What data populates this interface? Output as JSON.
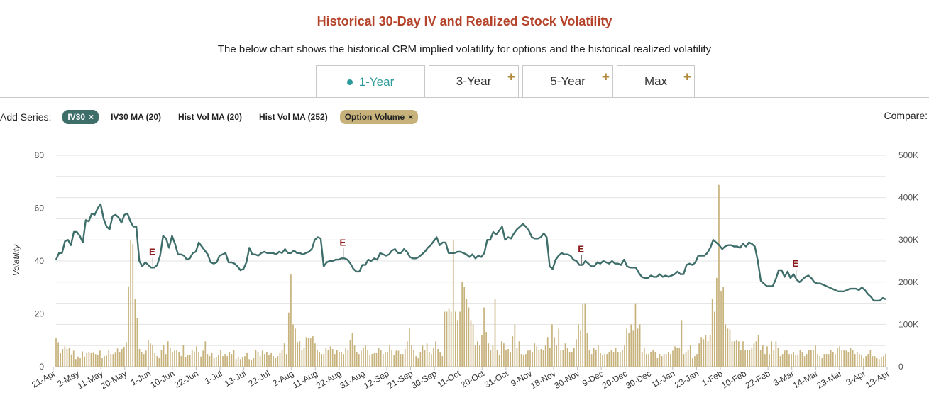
{
  "title": "Historical 30-Day IV and Realized Stock Volatility",
  "subtitle": "The below chart shows the historical CRM implied volatility for options and the historical realized volatility",
  "tabs": [
    {
      "label": "1-Year",
      "active": true
    },
    {
      "label": "3-Year",
      "locked": true
    },
    {
      "label": "5-Year",
      "locked": true
    },
    {
      "label": "Max",
      "locked": true
    }
  ],
  "add_series": {
    "label": "Add Series:",
    "items": [
      {
        "label": "IV30",
        "active": true,
        "color": "#3d6e6a"
      },
      {
        "label": "IV30 MA (20)",
        "active": false
      },
      {
        "label": "Hist Vol MA (20)",
        "active": false
      },
      {
        "label": "Hist Vol MA (252)",
        "active": false
      },
      {
        "label": "Option Volume",
        "active": true,
        "color": "#c7b27c"
      }
    ],
    "remove_glyph": "×"
  },
  "compare_label": "Compare:",
  "chart_data": {
    "type": "line",
    "ylabel": "Volatility",
    "ylim": [
      0,
      80
    ],
    "y_ticks": [
      "0",
      "20",
      "40",
      "60",
      "80"
    ],
    "y2lim": [
      0,
      500000
    ],
    "y2_ticks": [
      "0",
      "100K",
      "200K",
      "300K",
      "400K",
      "500K"
    ],
    "x_tick_labels": [
      "21-Apr",
      "2-May",
      "11-May",
      "20-May",
      "1-Jun",
      "10-Jun",
      "22-Jun",
      "1-Jul",
      "13-Jul",
      "22-Jul",
      "2-Aug",
      "11-Aug",
      "22-Aug",
      "31-Aug",
      "12-Sep",
      "21-Sep",
      "30-Sep",
      "11-Oct",
      "20-Oct",
      "31-Oct",
      "9-Nov",
      "18-Nov",
      "30-Nov",
      "9-Dec",
      "20-Dec",
      "30-Dec",
      "11-Jan",
      "23-Jan",
      "1-Feb",
      "10-Feb",
      "22-Feb",
      "3-Mar",
      "14-Mar",
      "23-Mar",
      "3-Apr",
      "13-Apr"
    ],
    "series": [
      {
        "name": "IV30",
        "kind": "line",
        "axis": "left",
        "color": "#3d6e6a",
        "values": [
          40.5,
          43,
          43,
          47.5,
          48,
          46,
          51,
          51,
          49.5,
          47,
          55.5,
          55,
          58,
          57.5,
          60,
          61.5,
          56,
          53,
          52,
          57,
          57.5,
          56.5,
          54.5,
          57.5,
          58,
          55,
          53,
          53,
          40,
          38,
          39.5,
          38.5,
          37.5,
          37.5,
          38.5,
          42,
          49.5,
          48.5,
          45,
          49.5,
          46.5,
          42.5,
          42.5,
          42,
          40.5,
          41,
          43,
          43.5,
          47,
          45.5,
          44,
          42.5,
          39.5,
          39,
          39.5,
          42,
          42.5,
          43,
          39.5,
          39.5,
          39,
          38,
          36.5,
          37,
          39.5,
          45,
          42.5,
          42.5,
          42,
          43,
          43.5,
          43,
          43,
          43,
          42.5,
          43.5,
          43,
          44.5,
          43,
          43,
          44,
          43,
          43,
          42.5,
          43,
          43.5,
          44.5,
          48,
          49,
          48.5,
          38,
          39.5,
          40,
          40,
          40.5,
          40.5,
          41,
          41,
          40.5,
          39,
          37,
          36,
          36,
          38.5,
          38.5,
          40.5,
          40,
          41,
          40.5,
          43,
          42.5,
          42,
          42.5,
          44,
          44.5,
          43,
          43,
          44.5,
          43.5,
          41.5,
          41,
          41,
          41.5,
          42.5,
          43.5,
          45,
          46,
          47.5,
          49,
          46,
          47,
          47,
          43,
          43,
          43,
          43.5,
          43.5,
          43,
          42.5,
          41.5,
          42.5,
          41,
          42,
          41.5,
          43,
          48,
          48,
          51,
          50,
          51.5,
          53,
          48,
          49,
          48.5,
          50.5,
          52,
          53,
          54,
          53,
          51.5,
          49,
          48.5,
          48.5,
          49,
          50.5,
          49,
          38,
          37,
          40.5,
          42,
          43,
          42.5,
          42.5,
          42,
          40.5,
          40,
          38.5,
          38.5,
          40,
          39,
          38,
          38,
          39.5,
          39,
          40,
          39.5,
          39,
          40,
          39,
          39,
          38.5,
          40.5,
          38,
          37.5,
          37.5,
          37.5,
          35.5,
          34,
          33.5,
          33.5,
          34.5,
          34,
          34,
          35,
          34,
          34.5,
          34,
          34.5,
          35,
          36,
          35,
          35,
          38.5,
          39,
          38.5,
          39.5,
          42,
          42,
          42,
          43,
          45,
          48,
          47,
          46,
          44.5,
          45.5,
          46,
          46,
          45.5,
          45.5,
          45,
          46.5,
          45.5,
          47,
          46.5,
          45.5,
          40,
          32.5,
          31.5,
          30.5,
          30.5,
          30.5,
          33,
          36.5,
          36.5,
          34,
          36,
          33.5,
          35,
          33,
          32,
          33,
          34,
          34.5,
          33.5,
          32,
          31.5,
          31.5,
          31,
          30.5,
          30,
          29.5,
          29,
          28.5,
          28.5,
          28.5,
          29,
          29.5,
          29.5,
          29.5,
          29,
          30,
          29,
          27.5,
          26.5,
          25,
          25,
          25,
          26,
          25.5
        ]
      },
      {
        "name": "Option Volume",
        "kind": "bar",
        "axis": "right",
        "color": "#c7b27c",
        "values": [
          68000,
          58000,
          32000,
          42000,
          48000,
          42000,
          45000,
          29000,
          38000,
          18000,
          24000,
          20000,
          36000,
          24000,
          32000,
          35000,
          32000,
          33000,
          30000,
          28000,
          38000,
          20000,
          25000,
          26000,
          38000,
          30000,
          30000,
          33000,
          43000,
          35000,
          42000,
          47000,
          58000,
          190000,
          300000,
          290000,
          160000,
          115000,
          42000,
          35000,
          30000,
          38000,
          62000,
          55000,
          52000,
          32000,
          25000,
          20000,
          40000,
          52000,
          30000,
          60000,
          45000,
          35000,
          38000,
          40000,
          35000,
          25000,
          52000,
          22000,
          27000,
          28000,
          40000,
          36000,
          48000,
          35000,
          24000,
          38000,
          60000,
          30000,
          25000,
          32000,
          20000,
          22000,
          28000,
          40000,
          25000,
          30000,
          25000,
          35000,
          30000,
          40000,
          18000,
          22000,
          18000,
          22000,
          25000,
          32000,
          18000,
          15000,
          20000,
          40000,
          35000,
          25000,
          38000,
          30000,
          35000,
          28000,
          32000,
          25000,
          20000,
          25000,
          32000,
          40000,
          55000,
          30000,
          128000,
          218000,
          100000,
          90000,
          58000,
          60000,
          40000,
          45000,
          70000,
          68000,
          68000,
          72000,
          55000,
          40000,
          35000,
          30000,
          30000,
          45000,
          40000,
          48000,
          42000,
          30000,
          40000,
          35000,
          35000,
          30000,
          45000,
          40000,
          62000,
          80000,
          50000,
          35000,
          30000,
          38000,
          45000,
          50000,
          40000,
          28000,
          30000,
          32000,
          32000,
          45000,
          40000,
          30000,
          35000,
          35000,
          50000,
          40000,
          28000,
          38000,
          38000,
          30000,
          30000,
          42000,
          60000,
          92000,
          52000,
          40000,
          25000,
          20000,
          35000,
          50000,
          40000,
          55000,
          35000,
          30000,
          45000,
          60000,
          42000,
          35000,
          25000,
          130000,
          130000,
          138000,
          130000,
          300000,
          130000,
          110000,
          130000,
          200000,
          188000,
          160000,
          140000,
          110000,
          100000,
          50000,
          60000,
          50000,
          75000,
          140000,
          82000,
          55000,
          40000,
          50000,
          160000,
          40000,
          28000,
          60000,
          55000,
          40000,
          42000,
          35000,
          72000,
          100000,
          45000,
          60000,
          30000,
          28000,
          30000,
          38000,
          40000,
          35000,
          55000,
          48000,
          40000,
          42000,
          40000,
          50000,
          70000,
          45000,
          100000,
          70000,
          50000,
          90000,
          40000,
          40000,
          55000,
          45000,
          35000,
          35000,
          45000,
          65000,
          100000,
          85000,
          148000,
          150000,
          80000,
          40000,
          30000,
          45000,
          40000,
          50000,
          32000,
          28000,
          30000,
          30000,
          35000,
          40000,
          35000,
          45000,
          35000,
          35000,
          40000,
          50000,
          90000,
          80000,
          100000,
          85000,
          150000,
          90000,
          100000,
          35000,
          45000,
          30000,
          30000,
          35000,
          40000,
          35000,
          20000,
          30000,
          25000,
          30000,
          30000,
          35000,
          30000,
          38000,
          48000,
          45000,
          45000,
          110000,
          30000,
          35000,
          40000,
          50000,
          20000,
          25000,
          30000,
          55000,
          70000,
          65000,
          75000,
          60000,
          75000,
          160000,
          130000,
          210000,
          430000,
          178000,
          188000,
          100000,
          90000,
          88000,
          60000,
          60000,
          62000,
          60000,
          40000,
          60000,
          40000,
          40000,
          40000,
          45000,
          55000,
          60000,
          75000,
          40000,
          50000,
          30000,
          48000,
          30000,
          60000,
          40000,
          60000,
          45000,
          25000,
          30000,
          38000,
          40000,
          30000,
          30000,
          35000,
          28000,
          28000,
          40000,
          35000,
          25000,
          30000,
          40000,
          40000,
          40000,
          50000,
          30000,
          25000,
          20000,
          30000,
          30000,
          30000,
          40000,
          35000,
          30000,
          45000,
          48000,
          40000,
          40000,
          38000,
          35000,
          45000,
          40000,
          30000,
          35000,
          30000,
          28000,
          20000,
          25000,
          30000,
          40000,
          25000,
          25000,
          20000,
          18000,
          22000,
          25000,
          30000
        ]
      }
    ],
    "earnings_markers": [
      {
        "label": "E",
        "date": "1-Jun"
      },
      {
        "label": "E",
        "date": "22-Aug"
      },
      {
        "label": "E",
        "date": "30-Nov"
      },
      {
        "label": "E",
        "date": "3-Mar"
      }
    ],
    "grid": true,
    "legend": "none"
  }
}
